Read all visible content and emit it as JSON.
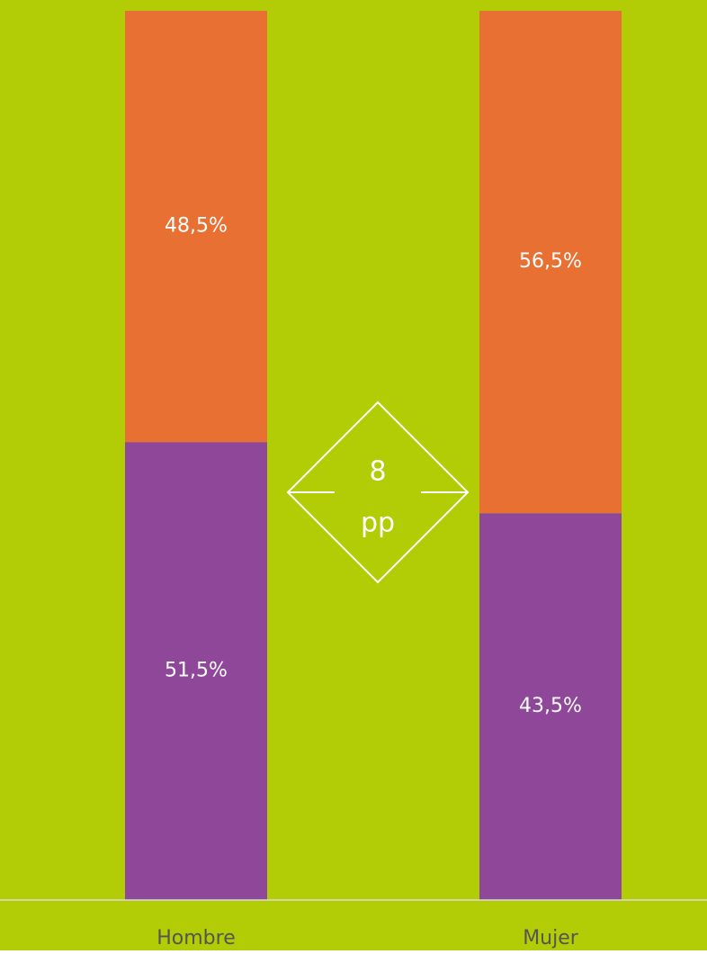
{
  "chart_data": {
    "type": "stacked_bar",
    "categories": [
      "Hombre",
      "Mujer"
    ],
    "series": [
      {
        "color": "#8f4899",
        "values": [
          51.5,
          43.5
        ],
        "value_labels": [
          "51,5%",
          "43,5%"
        ]
      },
      {
        "color": "#e87033",
        "values": [
          48.5,
          56.5
        ],
        "value_labels": [
          "48,5%",
          "56,5%"
        ]
      }
    ],
    "ylim": [
      0,
      100
    ],
    "annotation": [
      "8",
      "pp"
    ],
    "background": "#b2cc06"
  }
}
